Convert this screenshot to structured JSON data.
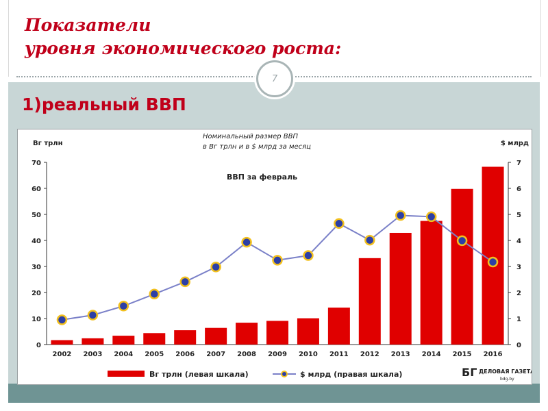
{
  "slide": {
    "title_line1": "Показатели",
    "title_line2": "уровня экономического роста:",
    "page_number": "7",
    "subtitle": "1)реальный ВВП"
  },
  "colors": {
    "title_red": "#c0001a",
    "bar_red": "#e00000",
    "line_blue": "#7a80c8",
    "marker_fill": "#2c3fa6",
    "marker_edge": "#f2c01e",
    "slide_bg": "#c8d6d6",
    "band_teal": "#6f9494"
  },
  "chart_data": {
    "type": "bar",
    "title_line1": "Номинальный размер ВВП",
    "title_line2": "в Вг трлн и в $ млрд за месяц",
    "inner_label": "ВВП за февраль",
    "left_unit": "Вг трлн",
    "right_unit": "$ млрд",
    "categories": [
      "2002",
      "2003",
      "2004",
      "2005",
      "2006",
      "2007",
      "2008",
      "2009",
      "2010",
      "2011",
      "2012",
      "2013",
      "2014",
      "2015",
      "2016"
    ],
    "left_axis": {
      "min": 0,
      "max": 70,
      "ticks": [
        "0",
        "10",
        "20",
        "30",
        "40",
        "50",
        "60",
        "70"
      ]
    },
    "right_axis": {
      "min": 0,
      "max": 7,
      "ticks": [
        "0",
        "1",
        "2",
        "3",
        "4",
        "5",
        "6",
        "7"
      ]
    },
    "series": [
      {
        "name": "Вг трлн (левая шкала)",
        "kind": "bar",
        "axis": "left",
        "values": [
          1.7,
          2.4,
          3.4,
          4.4,
          5.5,
          6.4,
          8.4,
          9.1,
          10.1,
          14.2,
          33.2,
          42.9,
          47.5,
          59.8,
          68.3
        ]
      },
      {
        "name": "$ млрд (правая шкала)",
        "kind": "line",
        "axis": "right",
        "values": [
          0.95,
          1.13,
          1.48,
          1.94,
          2.41,
          2.98,
          3.93,
          3.24,
          3.42,
          4.65,
          4.01,
          4.96,
          4.91,
          3.99,
          3.17
        ]
      }
    ],
    "grid": false,
    "legend_position": "bottom",
    "logo": {
      "mark": "БГ",
      "name": "ДЕЛОВАЯ ГАЗЕТА",
      "site": "bdg.by"
    }
  }
}
